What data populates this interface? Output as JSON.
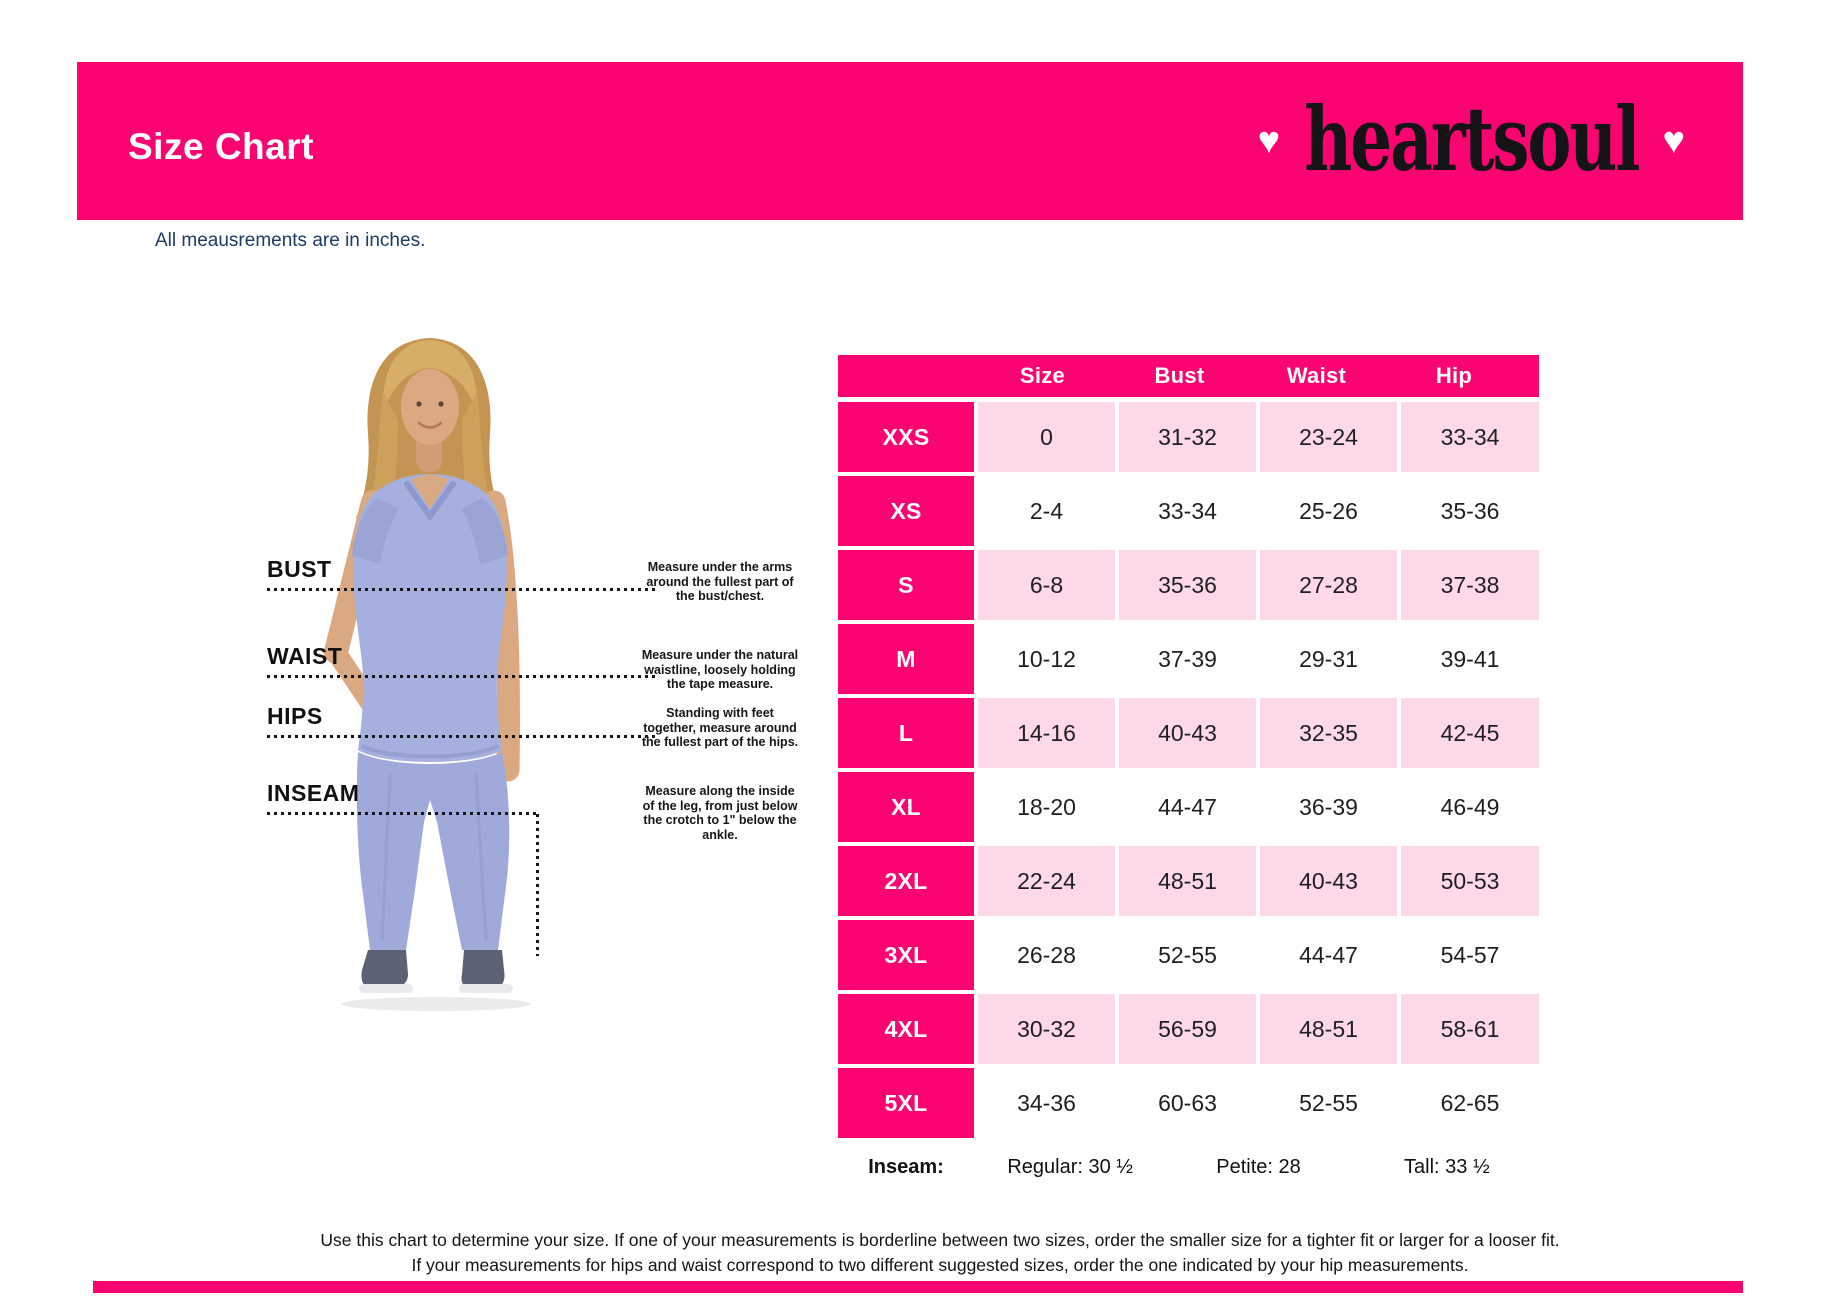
{
  "banner": {
    "title": "Size Chart",
    "brand": "heartsoul",
    "heart_glyph": "♥"
  },
  "note": "All meausrements are in inches.",
  "measurements": [
    {
      "label": "BUST",
      "instruction": "Measure under the arms around the fullest part of the bust/chest."
    },
    {
      "label": "WAIST",
      "instruction": "Measure under the natural waistline, loosely holding the tape measure."
    },
    {
      "label": "HIPS",
      "instruction": "Standing with feet together, measure around the fullest part of the hips."
    },
    {
      "label": "INSEAM",
      "instruction": "Measure along the inside of the leg, from just below the crotch to 1\" below the ankle."
    }
  ],
  "chart_data": {
    "type": "table",
    "columns": [
      "Size",
      "Bust",
      "Waist",
      "Hip"
    ],
    "rows": [
      {
        "size_label": "XXS",
        "size": "0",
        "bust": "31-32",
        "waist": "23-24",
        "hip": "33-34"
      },
      {
        "size_label": "XS",
        "size": "2-4",
        "bust": "33-34",
        "waist": "25-26",
        "hip": "35-36"
      },
      {
        "size_label": "S",
        "size": "6-8",
        "bust": "35-36",
        "waist": "27-28",
        "hip": "37-38"
      },
      {
        "size_label": "M",
        "size": "10-12",
        "bust": "37-39",
        "waist": "29-31",
        "hip": "39-41"
      },
      {
        "size_label": "L",
        "size": "14-16",
        "bust": "40-43",
        "waist": "32-35",
        "hip": "42-45"
      },
      {
        "size_label": "XL",
        "size": "18-20",
        "bust": "44-47",
        "waist": "36-39",
        "hip": "46-49"
      },
      {
        "size_label": "2XL",
        "size": "22-24",
        "bust": "48-51",
        "waist": "40-43",
        "hip": "50-53"
      },
      {
        "size_label": "3XL",
        "size": "26-28",
        "bust": "52-55",
        "waist": "44-47",
        "hip": "54-57"
      },
      {
        "size_label": "4XL",
        "size": "30-32",
        "bust": "56-59",
        "waist": "48-51",
        "hip": "58-61"
      },
      {
        "size_label": "5XL",
        "size": "34-36",
        "bust": "60-63",
        "waist": "52-55",
        "hip": "62-65"
      }
    ],
    "inseam": {
      "label": "Inseam:",
      "values": [
        "Regular: 30 ½",
        "Petite: 28",
        "Tall: 33 ½"
      ]
    }
  },
  "footer": {
    "line1": "Use this chart to determine your size. If one of your measurements is borderline between two sizes, order the smaller size for a tighter fit or larger for a looser fit.",
    "line2": "If your measurements for hips and waist correspond to two different suggested sizes, order the one indicated by your hip measurements."
  },
  "colors": {
    "hot_pink": "#FA0472",
    "light_pink": "#FCD8E9",
    "navy": "#1C3C64",
    "scrubs": "#A6B0DF"
  }
}
